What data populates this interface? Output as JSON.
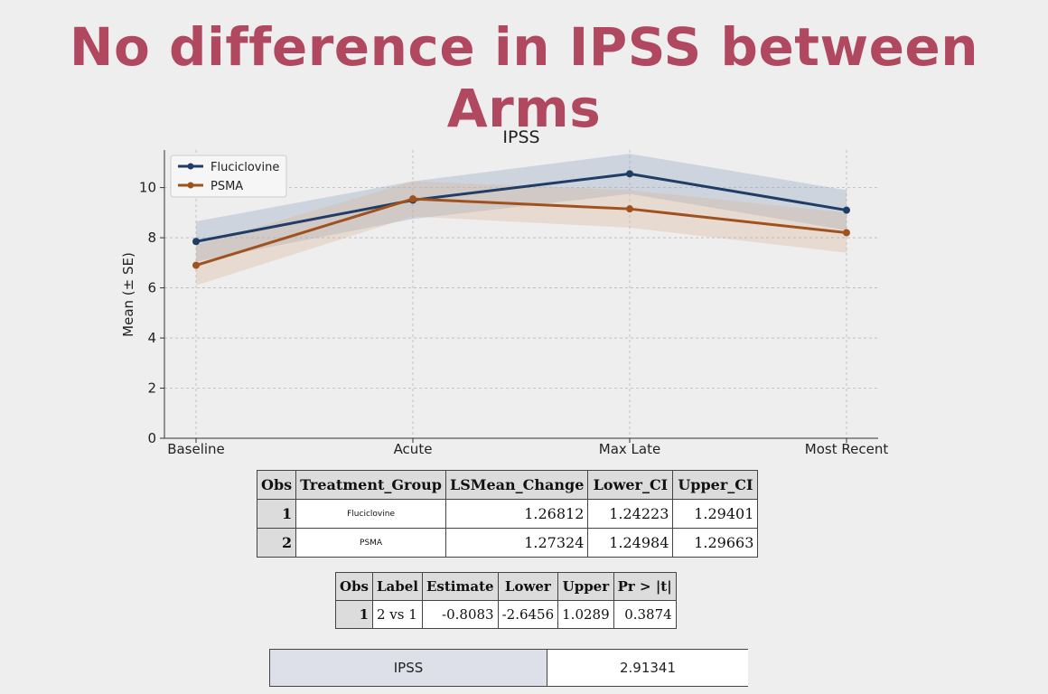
{
  "slide": {
    "title": "No difference in IPSS between Arms"
  },
  "chart_data": {
    "type": "line",
    "title": "IPSS",
    "xlabel": "",
    "ylabel": "Mean (± SE)",
    "categories": [
      "Baseline",
      "Acute",
      "Max Late",
      "Most Recent"
    ],
    "ylim": [
      0,
      11.5
    ],
    "yticks": [
      0,
      2,
      4,
      6,
      8,
      10
    ],
    "grid": true,
    "legend": "top-left",
    "series": [
      {
        "name": "Fluciclovine",
        "color": "#1f3d66",
        "band_color": "#8ea3bd",
        "values": [
          7.85,
          9.5,
          10.55,
          9.1
        ],
        "lower": [
          7.05,
          8.75,
          9.75,
          8.3
        ],
        "upper": [
          8.65,
          10.25,
          11.35,
          9.9
        ]
      },
      {
        "name": "PSMA",
        "color": "#a0521e",
        "band_color": "#d9b59a",
        "values": [
          6.9,
          9.55,
          9.15,
          8.2
        ],
        "lower": [
          6.1,
          8.85,
          8.4,
          7.4
        ],
        "upper": [
          7.7,
          10.25,
          9.9,
          9.0
        ]
      }
    ]
  },
  "table1": {
    "headers": [
      "Obs",
      "Treatment_Group",
      "LSMean_Change",
      "Lower_CI",
      "Upper_CI"
    ],
    "rows": [
      [
        "1",
        "Fluciclovine",
        "1.26812",
        "1.24223",
        "1.29401"
      ],
      [
        "2",
        "PSMA",
        "1.27324",
        "1.24984",
        "1.29663"
      ]
    ]
  },
  "table2": {
    "headers": [
      "Obs",
      "Label",
      "Estimate",
      "Lower",
      "Upper",
      "Pr > |t|"
    ],
    "rows": [
      [
        "1",
        "2 vs 1",
        "-0.8083",
        "-2.6456",
        "1.0289",
        "0.3874"
      ]
    ]
  },
  "table3": {
    "label": "IPSS",
    "value": "2.91341"
  }
}
